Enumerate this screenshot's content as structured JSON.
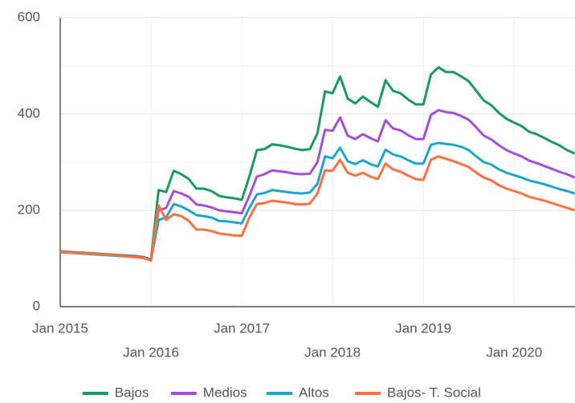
{
  "chart_data": {
    "type": "line",
    "x": [
      "2015-01",
      "2015-02",
      "2015-03",
      "2015-04",
      "2015-05",
      "2015-06",
      "2015-07",
      "2015-08",
      "2015-09",
      "2015-10",
      "2015-11",
      "2015-12",
      "2016-01",
      "2016-02",
      "2016-03",
      "2016-04",
      "2016-05",
      "2016-06",
      "2016-07",
      "2016-08",
      "2016-09",
      "2016-10",
      "2016-11",
      "2016-12",
      "2017-01",
      "2017-02",
      "2017-03",
      "2017-04",
      "2017-05",
      "2017-06",
      "2017-07",
      "2017-08",
      "2017-09",
      "2017-10",
      "2017-11",
      "2017-12",
      "2018-01",
      "2018-02",
      "2018-03",
      "2018-04",
      "2018-05",
      "2018-06",
      "2018-07",
      "2018-08",
      "2018-09",
      "2018-10",
      "2018-11",
      "2018-12",
      "2019-01",
      "2019-02",
      "2019-03",
      "2019-04",
      "2019-05",
      "2019-06",
      "2019-07",
      "2019-08",
      "2019-09",
      "2019-10",
      "2019-11",
      "2019-12",
      "2020-01",
      "2020-02",
      "2020-03",
      "2020-04",
      "2020-05",
      "2020-06",
      "2020-07",
      "2020-08",
      "2020-09"
    ],
    "xticks": [
      {
        "value": "2015-01",
        "label": "Jan 2015"
      },
      {
        "value": "2016-01",
        "label": "Jan 2016"
      },
      {
        "value": "2017-01",
        "label": "Jan 2017"
      },
      {
        "value": "2018-01",
        "label": "Jan 2018"
      },
      {
        "value": "2019-01",
        "label": "Jan 2019"
      },
      {
        "value": "2020-01",
        "label": "Jan 2020"
      }
    ],
    "ylim": [
      0,
      600
    ],
    "yticks": [
      0,
      200,
      400,
      600
    ],
    "minor_yticks": [
      100,
      300,
      500
    ],
    "grid": true,
    "legend": "bottom",
    "series": [
      {
        "name": "Bajos",
        "color": "#1a9a5c",
        "values": [
          115,
          114,
          113,
          112,
          111,
          110,
          109,
          108,
          107,
          106,
          105,
          103,
          98,
          242,
          238,
          282,
          275,
          265,
          245,
          245,
          240,
          230,
          227,
          225,
          222,
          270,
          325,
          327,
          337,
          335,
          332,
          328,
          325,
          327,
          360,
          447,
          443,
          478,
          432,
          422,
          436,
          425,
          415,
          470,
          448,
          443,
          430,
          420,
          420,
          482,
          497,
          487,
          487,
          478,
          468,
          448,
          428,
          418,
          402,
          390,
          382,
          375,
          363,
          358,
          350,
          342,
          335,
          325,
          318
        ]
      },
      {
        "name": "Medios",
        "color": "#a64fd6",
        "values": [
          114,
          113,
          112,
          111,
          110,
          109,
          108,
          107,
          106,
          105,
          104,
          102,
          97,
          200,
          205,
          240,
          235,
          228,
          212,
          210,
          206,
          200,
          198,
          196,
          194,
          230,
          270,
          275,
          283,
          281,
          279,
          276,
          275,
          276,
          300,
          367,
          365,
          393,
          355,
          348,
          358,
          350,
          343,
          387,
          370,
          366,
          356,
          348,
          348,
          398,
          408,
          404,
          402,
          396,
          388,
          372,
          355,
          347,
          335,
          325,
          318,
          312,
          303,
          298,
          292,
          286,
          280,
          275,
          268
        ]
      },
      {
        "name": "Altos",
        "color": "#1ba7c9",
        "values": [
          113,
          112,
          111,
          110,
          109,
          108,
          107,
          106,
          105,
          104,
          103,
          101,
          96,
          180,
          185,
          213,
          208,
          200,
          190,
          188,
          185,
          178,
          177,
          175,
          173,
          205,
          233,
          236,
          242,
          240,
          238,
          236,
          235,
          237,
          255,
          312,
          308,
          330,
          302,
          296,
          304,
          296,
          291,
          326,
          316,
          312,
          304,
          297,
          297,
          336,
          340,
          338,
          336,
          332,
          325,
          312,
          300,
          295,
          285,
          278,
          273,
          268,
          262,
          258,
          254,
          249,
          244,
          240,
          235
        ]
      },
      {
        "name": "Bajos- T. Social",
        "color": "#ff7043",
        "values": [
          114,
          113,
          112,
          111,
          110,
          109,
          108,
          107,
          106,
          104,
          103,
          101,
          96,
          210,
          180,
          192,
          188,
          178,
          160,
          160,
          157,
          152,
          150,
          148,
          147,
          185,
          213,
          215,
          220,
          218,
          216,
          213,
          212,
          214,
          235,
          283,
          282,
          305,
          278,
          272,
          278,
          270,
          265,
          297,
          285,
          280,
          272,
          265,
          263,
          305,
          312,
          307,
          302,
          296,
          290,
          278,
          268,
          262,
          252,
          245,
          240,
          235,
          228,
          224,
          220,
          215,
          210,
          205,
          200
        ]
      }
    ]
  }
}
